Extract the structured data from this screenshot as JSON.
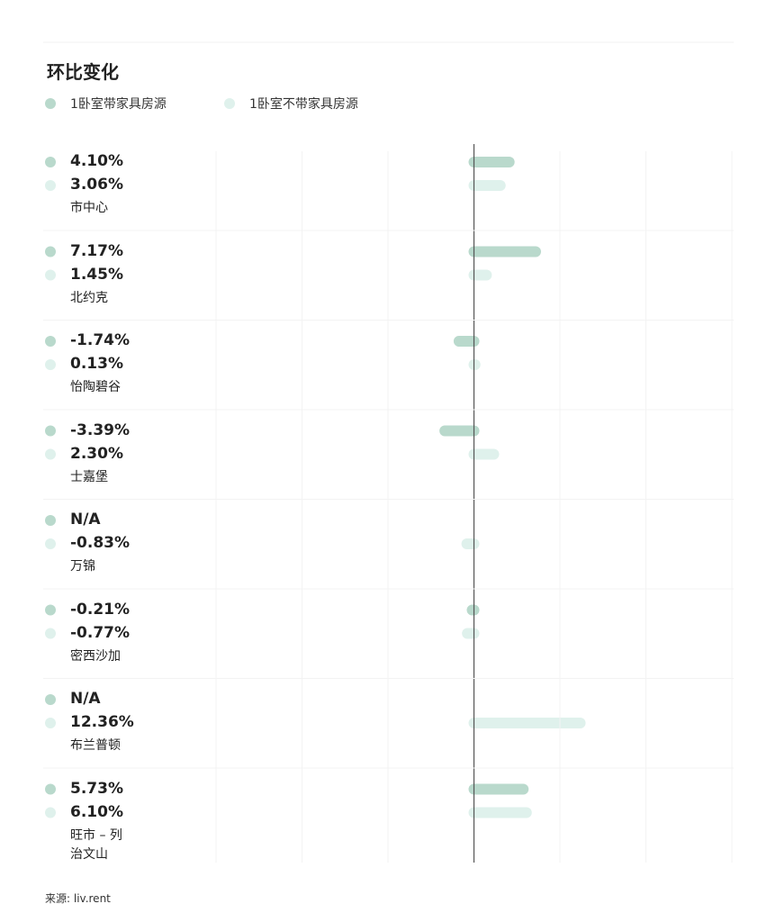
{
  "chart_data": {
    "type": "bar",
    "orientation": "horizontal",
    "title": "环比变化",
    "categories": [
      "市中心",
      "北约克",
      "怡陶碧谷",
      "士嘉堡",
      "万锦",
      "密西沙加",
      "布兰普顿",
      "旺市 – 列治文山"
    ],
    "series": [
      {
        "name": "1卧室带家具房源",
        "color": "#b9d9cc",
        "values": [
          4.1,
          7.17,
          -1.74,
          -3.39,
          null,
          -0.21,
          null,
          5.73
        ],
        "value_labels": [
          "4.10%",
          "7.17%",
          "-1.74%",
          "-3.39%",
          "N/A",
          "-0.21%",
          "N/A",
          "5.73%"
        ]
      },
      {
        "name": "1卧室不带家具房源",
        "color": "#dff1ec",
        "values": [
          3.06,
          1.45,
          0.13,
          2.3,
          -0.83,
          -0.77,
          12.36,
          6.1
        ],
        "value_labels": [
          "3.06%",
          "1.45%",
          "0.13%",
          "2.30%",
          "-0.83%",
          "-0.77%",
          "12.36%",
          "6.10%"
        ]
      }
    ],
    "xlim": [
      -30,
      30
    ],
    "xticks": [
      -30,
      -20,
      -10,
      0,
      10,
      20,
      30
    ],
    "grid": true,
    "source": "来源: liv.rent"
  }
}
